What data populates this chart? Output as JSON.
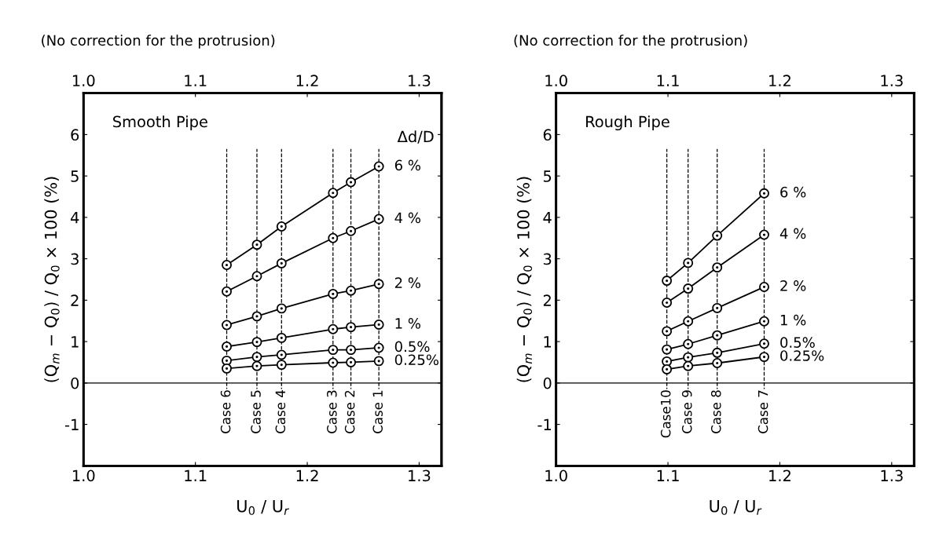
{
  "chart_data": [
    {
      "type": "line",
      "title": "(No correction for the protrusion)",
      "xlabel": "U$_{0}$ / U$_{r}$",
      "ylabel": "(Q$_{m}$ − Q$_{0}$) / Q$_{0}$ × 100 (%)",
      "legend_title": "Δd/D",
      "annotations": [
        "Smooth Pipe"
      ],
      "x": [
        1.128,
        1.155,
        1.177,
        1.223,
        1.239,
        1.264
      ],
      "series": [
        {
          "name": "6 %",
          "color": "#000000",
          "values": [
            2.85,
            3.34,
            3.78,
            4.59,
            4.85,
            5.23
          ]
        },
        {
          "name": "4 %",
          "color": "#000000",
          "values": [
            2.21,
            2.58,
            2.89,
            3.5,
            3.67,
            3.96
          ]
        },
        {
          "name": "2 %",
          "color": "#000000",
          "values": [
            1.4,
            1.61,
            1.8,
            2.15,
            2.23,
            2.39
          ]
        },
        {
          "name": "1 %",
          "color": "#000000",
          "values": [
            0.88,
            0.99,
            1.09,
            1.3,
            1.35,
            1.41
          ]
        },
        {
          "name": "0.5%",
          "color": "#000000",
          "values": [
            0.54,
            0.63,
            0.68,
            0.8,
            0.8,
            0.85
          ]
        },
        {
          "name": "0.25%",
          "color": "#000000",
          "values": [
            0.35,
            0.41,
            0.44,
            0.49,
            0.5,
            0.53
          ]
        }
      ],
      "xlim": [
        1.0,
        1.32
      ],
      "xticks": [
        {
          "value": 1.0,
          "label": "1.0"
        },
        1.1,
        1.2,
        1.3
      ],
      "x2lim": [
        1.0,
        1.32
      ],
      "x2ticks": [
        {
          "value": 1.0,
          "label": "1.0"
        },
        1.1,
        1.2,
        1.3
      ],
      "ylim": [
        -2,
        7
      ],
      "yticks": [
        -1,
        0,
        1,
        2,
        3,
        4,
        5,
        6
      ],
      "ref_lines": [
        {
          "axis": "y",
          "value": 0,
          "color": "#000000",
          "line_style": "solid"
        },
        {
          "axis": "x",
          "value": 1.128,
          "label": "Case 6",
          "color": "#000000",
          "line_style": "dashed"
        },
        {
          "axis": "x",
          "value": 1.155,
          "label": "Case 5",
          "color": "#000000",
          "line_style": "dashed"
        },
        {
          "axis": "x",
          "value": 1.177,
          "label": "Case 4",
          "color": "#000000",
          "line_style": "dashed"
        },
        {
          "axis": "x",
          "value": 1.223,
          "label": "Case 3",
          "color": "#000000",
          "line_style": "dashed"
        },
        {
          "axis": "x",
          "value": 1.239,
          "label": "Case 2",
          "color": "#000000",
          "line_style": "dashed"
        },
        {
          "axis": "x",
          "value": 1.264,
          "label": "Case 1",
          "color": "#000000",
          "line_style": "dashed"
        }
      ],
      "marker": "circle",
      "line_style": "solid",
      "grid": false,
      "legend": "right"
    },
    {
      "type": "line",
      "title": "(No correction for the protrusion)",
      "xlabel": "U$_{0}$ / U$_{r}$",
      "ylabel": "(Q$_{m}$ − Q$_{0}$) / Q$_{0}$ × 100 (%)",
      "annotations": [
        "Rough Pipe"
      ],
      "x": [
        1.099,
        1.118,
        1.144,
        1.186
      ],
      "series": [
        {
          "name": "6 %",
          "color": "#000000",
          "values": [
            2.47,
            2.9,
            3.56,
            4.58
          ]
        },
        {
          "name": "4 %",
          "color": "#000000",
          "values": [
            1.94,
            2.28,
            2.79,
            3.58
          ]
        },
        {
          "name": "2 %",
          "color": "#000000",
          "values": [
            1.25,
            1.49,
            1.81,
            2.32
          ]
        },
        {
          "name": "1 %",
          "color": "#000000",
          "values": [
            0.81,
            0.94,
            1.15,
            1.49
          ]
        },
        {
          "name": "0.5%",
          "color": "#000000",
          "values": [
            0.52,
            0.62,
            0.73,
            0.95
          ]
        },
        {
          "name": "0.25%",
          "color": "#000000",
          "values": [
            0.33,
            0.41,
            0.48,
            0.63
          ]
        }
      ],
      "xlim": [
        1.0,
        1.32
      ],
      "xticks": [
        {
          "value": 1.0,
          "label": "1.0"
        },
        1.1,
        1.2,
        1.3
      ],
      "x2lim": [
        1.0,
        1.32
      ],
      "x2ticks": [
        {
          "value": 1.0,
          "label": "1.0"
        },
        1.1,
        1.2,
        1.3
      ],
      "ylim": [
        -2,
        7
      ],
      "yticks": [
        -1,
        0,
        1,
        2,
        3,
        4,
        5,
        6
      ],
      "ref_lines": [
        {
          "axis": "y",
          "value": 0,
          "color": "#000000",
          "line_style": "solid"
        },
        {
          "axis": "x",
          "value": 1.099,
          "label": "Case10",
          "color": "#000000",
          "line_style": "dashed"
        },
        {
          "axis": "x",
          "value": 1.118,
          "label": "Case 9",
          "color": "#000000",
          "line_style": "dashed"
        },
        {
          "axis": "x",
          "value": 1.144,
          "label": "Case 8",
          "color": "#000000",
          "line_style": "dashed"
        },
        {
          "axis": "x",
          "value": 1.186,
          "label": "Case 7",
          "color": "#000000",
          "line_style": "dashed"
        }
      ],
      "marker": "circle",
      "line_style": "solid",
      "grid": false,
      "legend": "right"
    }
  ]
}
